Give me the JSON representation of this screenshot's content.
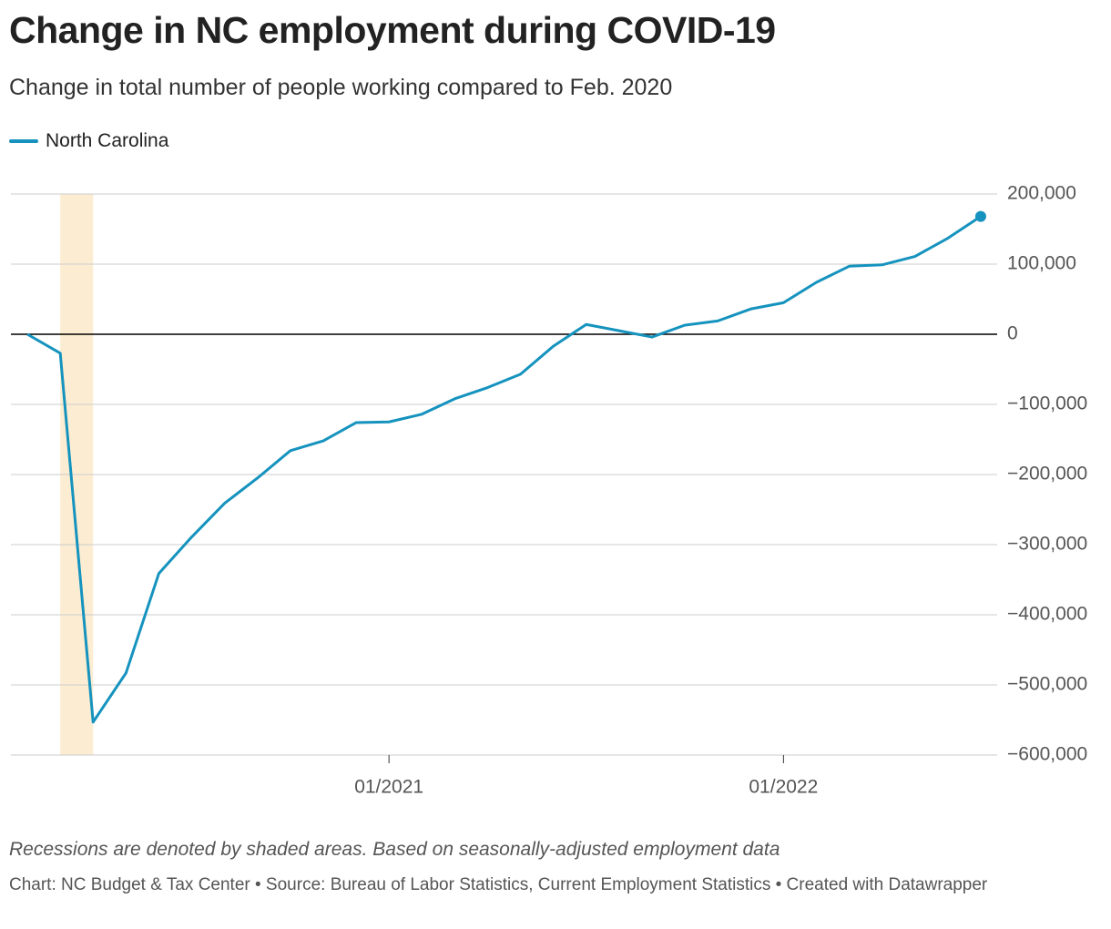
{
  "chart_data": {
    "type": "line",
    "title": "Change in NC employment during COVID-19",
    "subtitle": "Change in total number of people working compared to Feb. 2020",
    "note": "Recessions are denoted by shaded areas. Based on seasonally-adjusted employment data",
    "source": "Chart: NC Budget & Tax Center • Source: Bureau of Labor Statistics, Current Employment Statistics • Created with Datawrapper",
    "x": [
      "02/2020",
      "03/2020",
      "04/2020",
      "05/2020",
      "06/2020",
      "07/2020",
      "08/2020",
      "09/2020",
      "10/2020",
      "11/2020",
      "12/2020",
      "01/2021",
      "02/2021",
      "03/2021",
      "04/2021",
      "05/2021",
      "06/2021",
      "07/2021",
      "08/2021",
      "09/2021",
      "10/2021",
      "11/2021",
      "12/2021",
      "01/2022",
      "02/2022",
      "03/2022",
      "04/2022",
      "05/2022",
      "06/2022",
      "07/2022"
    ],
    "series": [
      {
        "name": "North Carolina",
        "color": "#1593be",
        "values": [
          0,
          -27000,
          -553000,
          -483000,
          -341000,
          -289000,
          -241000,
          -205000,
          -166000,
          -152000,
          -126000,
          -125000,
          -114000,
          -92000,
          -76000,
          -57000,
          -17000,
          14000,
          5000,
          -4000,
          13000,
          19000,
          36000,
          45000,
          74000,
          97000,
          99000,
          111000,
          137000,
          168000
        ]
      }
    ],
    "xticks": [
      "01/2021",
      "01/2022"
    ],
    "ylim": [
      -600000,
      200000
    ],
    "yticks": [
      {
        "value": -600000,
        "label": "−600,000"
      },
      {
        "value": -500000,
        "label": "−500,000"
      },
      {
        "value": -400000,
        "label": "−400,000"
      },
      {
        "value": -300000,
        "label": "−300,000"
      },
      {
        "value": -200000,
        "label": "−200,000"
      },
      {
        "value": -100000,
        "label": "−100,000"
      },
      0,
      {
        "value": 100000,
        "label": "100,000"
      },
      {
        "value": 200000,
        "label": "200,000"
      }
    ],
    "grid": true,
    "recessions": [
      {
        "start": "03/2020",
        "end": "04/2020",
        "color": "#fcedd2"
      }
    ],
    "legend": "top-left"
  }
}
